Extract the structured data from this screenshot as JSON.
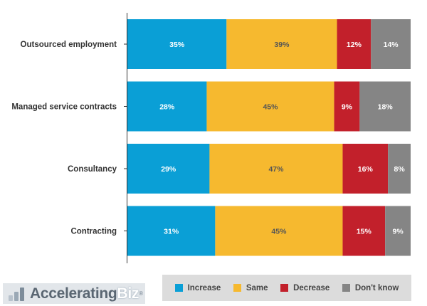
{
  "chart_data": {
    "type": "bar",
    "orientation": "horizontal",
    "stacked": true,
    "percent_stacked": true,
    "categories": [
      "Outsourced employment",
      "Managed service contracts",
      "Consultancy",
      "Contracting"
    ],
    "series": [
      {
        "name": "Increase",
        "color": "#0a9fd6",
        "values": [
          35,
          28,
          29,
          31
        ],
        "labels": [
          "35%",
          "28%",
          "29%",
          "31%"
        ]
      },
      {
        "name": "Same",
        "color": "#f6b92f",
        "values": [
          39,
          45,
          47,
          45
        ],
        "labels": [
          "39%",
          "45%",
          "47%",
          "45%"
        ]
      },
      {
        "name": "Decrease",
        "color": "#c2202b",
        "values": [
          12,
          9,
          16,
          15
        ],
        "labels": [
          "12%",
          "9%",
          "16%",
          "15%"
        ]
      },
      {
        "name": "Don't know",
        "color": "#858585",
        "values": [
          14,
          18,
          8,
          9
        ],
        "labels": [
          "14%",
          "18%",
          "8%",
          "9%"
        ]
      }
    ],
    "label_colors": [
      "#ffffff",
      "#555555",
      "#ffffff",
      "#ffffff"
    ],
    "xlim": [
      0,
      100
    ],
    "grid": false,
    "legend": "bottom-right"
  },
  "legend": {
    "items": [
      {
        "label": "Increase",
        "color": "#0a9fd6"
      },
      {
        "label": "Same",
        "color": "#f6b92f"
      },
      {
        "label": "Decrease",
        "color": "#c2202b"
      },
      {
        "label": "Don't know",
        "color": "#858585"
      }
    ]
  },
  "logo": {
    "part1": "Accelerating",
    "part2": "Biz",
    "mark": "®"
  }
}
